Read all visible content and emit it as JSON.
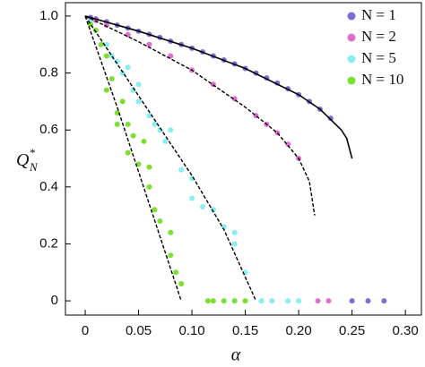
{
  "chart_data": {
    "type": "scatter",
    "x_label": "α",
    "y_label": {
      "base": "Q",
      "sup": "*",
      "sub": "N"
    },
    "xlim": [
      -0.0185,
      0.315
    ],
    "ylim": [
      -0.05,
      1.047
    ],
    "xticks": [
      0,
      0.05,
      {
        "value": 0.1,
        "label": "0.10"
      },
      0.15,
      {
        "value": 0.2,
        "label": "0.20"
      },
      0.25,
      {
        "value": 0.3,
        "label": "0.30"
      }
    ],
    "yticks": [
      0,
      0.2,
      0.4,
      0.6,
      0.8,
      {
        "value": 1,
        "label": "1.0"
      }
    ],
    "legend": "top-right",
    "series": [
      {
        "name": "N = 1",
        "color": "#7b6fd6",
        "x": [
          0.005,
          0.01,
          0.02,
          0.03,
          0.04,
          0.05,
          0.06,
          0.07,
          0.08,
          0.09,
          0.1,
          0.11,
          0.12,
          0.13,
          0.14,
          0.15,
          0.16,
          0.17,
          0.18,
          0.19,
          0.2,
          0.21,
          0.22,
          0.23,
          0.25,
          0.265,
          0.28
        ],
        "values": [
          0.995,
          0.99,
          0.98,
          0.968,
          0.958,
          0.947,
          0.936,
          0.925,
          0.912,
          0.9,
          0.887,
          0.874,
          0.86,
          0.846,
          0.832,
          0.816,
          0.8,
          0.783,
          0.765,
          0.745,
          0.724,
          0.7,
          0.673,
          0.641,
          0,
          0,
          0
        ]
      },
      {
        "name": "N = 2",
        "color": "#e070d0",
        "x": [
          0.01,
          0.02,
          0.04,
          0.06,
          0.08,
          0.1,
          0.12,
          0.14,
          0.16,
          0.17,
          0.18,
          0.19,
          0.2,
          0.218,
          0.228
        ],
        "values": [
          0.985,
          0.968,
          0.935,
          0.9,
          0.86,
          0.81,
          0.76,
          0.71,
          0.65,
          0.62,
          0.59,
          0.55,
          0.5,
          0,
          0
        ]
      },
      {
        "name": "N = 5",
        "color": "#88eef0",
        "x": [
          0.005,
          0.01,
          0.02,
          0.025,
          0.03,
          0.035,
          0.04,
          0.045,
          0.05,
          0.05,
          0.06,
          0.065,
          0.07,
          0.075,
          0.08,
          0.09,
          0.1,
          0.1,
          0.11,
          0.12,
          0.13,
          0.14,
          0.14,
          0.15,
          0.14,
          0.165,
          0.175,
          0.19,
          0.2
        ],
        "values": [
          0.98,
          0.95,
          0.9,
          0.86,
          0.84,
          0.8,
          0.82,
          0.74,
          0.76,
          0.7,
          0.65,
          0.62,
          0.6,
          0.56,
          0.6,
          0.46,
          0.43,
          0.36,
          0.33,
          0.32,
          0.26,
          0.2,
          0.24,
          0.1,
          0,
          0,
          0,
          0,
          0
        ]
      },
      {
        "name": "N = 10",
        "color": "#7de030",
        "x": [
          0.005,
          0.01,
          0.015,
          0.02,
          0.02,
          0.025,
          0.03,
          0.03,
          0.035,
          0.04,
          0.04,
          0.045,
          0.05,
          0.055,
          0.06,
          0.06,
          0.065,
          0.07,
          0.08,
          0.08,
          0.085,
          0.09,
          0.115,
          0.12,
          0.13,
          0.14,
          0.15
        ],
        "values": [
          0.97,
          0.95,
          0.9,
          0.86,
          0.74,
          0.78,
          0.66,
          0.62,
          0.7,
          0.62,
          0.52,
          0.58,
          0.48,
          0.56,
          0.47,
          0.4,
          0.32,
          0.28,
          0.24,
          0.16,
          0.1,
          0.06,
          0,
          0,
          0,
          0,
          0
        ]
      }
    ],
    "curves": [
      {
        "style": "solid",
        "x": [
          0,
          0.05,
          0.1,
          0.15,
          0.2,
          0.22,
          0.24,
          0.245,
          0.25
        ],
        "values": [
          1,
          0.947,
          0.887,
          0.816,
          0.724,
          0.673,
          0.6,
          0.571,
          0.5
        ]
      },
      {
        "style": "dashed",
        "x": [
          0,
          0.05,
          0.1,
          0.15,
          0.18,
          0.2,
          0.21,
          0.215
        ],
        "values": [
          1,
          0.91,
          0.81,
          0.68,
          0.59,
          0.5,
          0.42,
          0.3
        ]
      },
      {
        "style": "dashed",
        "x": [
          0,
          0.05,
          0.1,
          0.13,
          0.16
        ],
        "values": [
          1,
          0.72,
          0.44,
          0.25,
          0
        ]
      },
      {
        "style": "dashed",
        "x": [
          0,
          0.03,
          0.06,
          0.09
        ],
        "values": [
          1,
          0.68,
          0.34,
          0
        ]
      }
    ]
  }
}
